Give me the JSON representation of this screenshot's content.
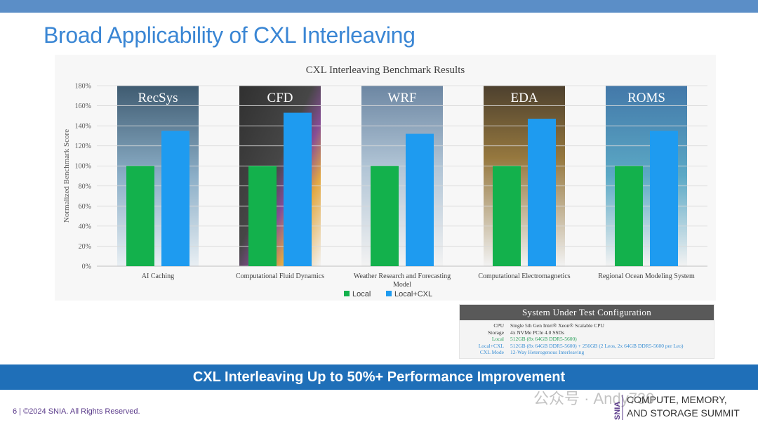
{
  "slide": {
    "title": "Broad Applicability of CXL Interleaving",
    "banner": "CXL Interleaving Up to 50%+ Performance Improvement",
    "footer": "6 | ©2024 SNIA. All Rights Reserved.",
    "watermark": "公众号 · Andy730",
    "logo": "SNIA",
    "summit_line1": "COMPUTE, MEMORY,",
    "summit_line2": "AND STORAGE SUMMIT"
  },
  "config": {
    "title": "System Under Test Configuration",
    "rows": [
      {
        "label": "CPU",
        "value": "Single 5th Gen Intel® Xeon® Scalable CPU"
      },
      {
        "label": "Storage",
        "value": "4x NVMe PCIe 4.0 SSDs"
      },
      {
        "label": "Local",
        "value": "512GB (8x 64GB DDR5-5600)"
      },
      {
        "label": "Local+CXL",
        "value": "512GB (8x 64GB DDR5-5600) + 256GB (2 Leos, 2x 64GB DDR5-5600 per Leo)"
      },
      {
        "label": "CXL Mode",
        "value": "12-Way Heterogenous Interleaving"
      }
    ]
  },
  "colors": {
    "local": "#13b14c",
    "local_cxl": "#1e9bf0",
    "banner": "#1f6fb8",
    "title": "#3a86d4"
  },
  "chart_data": {
    "type": "bar",
    "title": "CXL Interleaving Benchmark Results",
    "ylabel": "Normalized Benchmark Score",
    "xlabel": "",
    "ylim": [
      0,
      180
    ],
    "yticks": [
      "0%",
      "20%",
      "40%",
      "60%",
      "80%",
      "100%",
      "120%",
      "140%",
      "160%",
      "180%"
    ],
    "categories": [
      "AI Caching",
      "Computational Fluid Dynamics",
      "Weather Research and Forecasting Model",
      "Computational Electromagnetics",
      "Regional Ocean Modeling System"
    ],
    "panel_labels": [
      "RecSys",
      "CFD",
      "WRF",
      "EDA",
      "ROMS"
    ],
    "series": [
      {
        "name": "Local",
        "values": [
          100,
          100,
          100,
          100,
          100
        ]
      },
      {
        "name": "Local+CXL",
        "values": [
          135,
          153,
          132,
          147,
          135
        ]
      }
    ],
    "legend_position": "bottom-center"
  }
}
